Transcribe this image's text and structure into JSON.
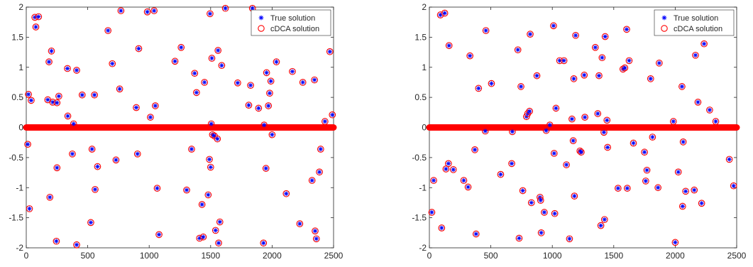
{
  "chart_data": [
    {
      "type": "scatter",
      "title": "",
      "xlabel": "",
      "ylabel": "",
      "xlim": [
        0,
        2500
      ],
      "ylim": [
        -2,
        2
      ],
      "xticks": [
        "0",
        "500",
        "1000",
        "1500",
        "2000",
        "2500"
      ],
      "yticks": [
        "2",
        "1.5",
        "1",
        "0.5",
        "0",
        "-0.5",
        "-1",
        "-1.5",
        "-2"
      ],
      "grid": false,
      "legend_position": "top-right",
      "legend": [
        {
          "label": "True solution",
          "marker": "*",
          "color": "#0000ff"
        },
        {
          "label": "cDCA solution",
          "marker": "o",
          "color": "#ff0000"
        }
      ],
      "zero_line": {
        "from": 0,
        "to": 2500,
        "y": 0
      },
      "points": [
        [
          12,
          -0.28
        ],
        [
          18,
          0.55
        ],
        [
          26,
          -1.35
        ],
        [
          40,
          0.45
        ],
        [
          70,
          1.83
        ],
        [
          78,
          1.67
        ],
        [
          100,
          1.84
        ],
        [
          175,
          0.46
        ],
        [
          185,
          1.09
        ],
        [
          192,
          -1.16
        ],
        [
          205,
          1.27
        ],
        [
          215,
          0.42
        ],
        [
          250,
          0.41
        ],
        [
          250,
          -0.67
        ],
        [
          245,
          -1.89
        ],
        [
          265,
          0.52
        ],
        [
          335,
          0.98
        ],
        [
          338,
          0.19
        ],
        [
          375,
          -0.44
        ],
        [
          385,
          0.06
        ],
        [
          410,
          0.95
        ],
        [
          410,
          -1.95
        ],
        [
          455,
          0.54
        ],
        [
          525,
          -1.58
        ],
        [
          535,
          -0.36
        ],
        [
          555,
          0.54
        ],
        [
          560,
          -1.03
        ],
        [
          580,
          -0.65
        ],
        [
          665,
          1.61
        ],
        [
          700,
          1.06
        ],
        [
          730,
          -0.54
        ],
        [
          760,
          0.64
        ],
        [
          770,
          1.94
        ],
        [
          895,
          0.33
        ],
        [
          905,
          -0.44
        ],
        [
          915,
          1.31
        ],
        [
          985,
          1.92
        ],
        [
          1010,
          0.17
        ],
        [
          1040,
          1.94
        ],
        [
          1050,
          0.36
        ],
        [
          1065,
          -1.01
        ],
        [
          1080,
          -1.78
        ],
        [
          1210,
          1.1
        ],
        [
          1260,
          1.33
        ],
        [
          1305,
          -1.04
        ],
        [
          1345,
          -0.36
        ],
        [
          1370,
          0.9
        ],
        [
          1385,
          0.58
        ],
        [
          1410,
          -1.84
        ],
        [
          1430,
          -1.28
        ],
        [
          1440,
          -1.82
        ],
        [
          1450,
          0.75
        ],
        [
          1480,
          -1.12
        ],
        [
          1490,
          -0.53
        ],
        [
          1495,
          1.89
        ],
        [
          1500,
          -0.66
        ],
        [
          1505,
          0.06
        ],
        [
          1510,
          1.15
        ],
        [
          1515,
          -0.12
        ],
        [
          1530,
          -0.14
        ],
        [
          1540,
          -1.71
        ],
        [
          1555,
          -0.19
        ],
        [
          1560,
          1.28
        ],
        [
          1565,
          -1.92
        ],
        [
          1575,
          -1.57
        ],
        [
          1590,
          1.03
        ],
        [
          1620,
          1.98
        ],
        [
          1720,
          0.74
        ],
        [
          1810,
          0.37
        ],
        [
          1825,
          0.7
        ],
        [
          1840,
          1.98
        ],
        [
          1890,
          0.32
        ],
        [
          1930,
          -1.92
        ],
        [
          1935,
          0.04
        ],
        [
          1950,
          -0.68
        ],
        [
          1955,
          0.91
        ],
        [
          1970,
          0.36
        ],
        [
          1980,
          0.57
        ],
        [
          1990,
          0.77
        ],
        [
          2000,
          -0.12
        ],
        [
          2035,
          1.09
        ],
        [
          2115,
          -1.1
        ],
        [
          2165,
          0.93
        ],
        [
          2225,
          -1.6
        ],
        [
          2250,
          0.75
        ],
        [
          2325,
          -0.88
        ],
        [
          2345,
          0.79
        ],
        [
          2350,
          -1.72
        ],
        [
          2360,
          -1.85
        ],
        [
          2385,
          -0.74
        ],
        [
          2395,
          -0.36
        ],
        [
          2415,
          1.84
        ],
        [
          2430,
          0.1
        ],
        [
          2470,
          1.26
        ],
        [
          2490,
          0.21
        ]
      ]
    },
    {
      "type": "scatter",
      "title": "",
      "xlabel": "",
      "ylabel": "",
      "xlim": [
        0,
        2500
      ],
      "ylim": [
        -2,
        2
      ],
      "xticks": [
        "0",
        "500",
        "1000",
        "1500",
        "2000",
        "2500"
      ],
      "yticks": [
        "2",
        "1.5",
        "1",
        "0.5",
        "0",
        "-0.5",
        "-1",
        "-1.5",
        "-2"
      ],
      "grid": false,
      "legend_position": "top-right",
      "legend": [
        {
          "label": "True solution",
          "marker": "*",
          "color": "#0000ff"
        },
        {
          "label": "cDCA solution",
          "marker": "o",
          "color": "#ff0000"
        }
      ],
      "zero_line": {
        "from": 0,
        "to": 2500,
        "y": 0
      },
      "points": [
        [
          20,
          -1.41
        ],
        [
          35,
          -0.88
        ],
        [
          90,
          1.87
        ],
        [
          100,
          -1.67
        ],
        [
          125,
          1.9
        ],
        [
          135,
          -0.69
        ],
        [
          155,
          -0.6
        ],
        [
          160,
          1.36
        ],
        [
          195,
          -0.7
        ],
        [
          280,
          -0.88
        ],
        [
          315,
          -0.99
        ],
        [
          330,
          1.19
        ],
        [
          370,
          -0.37
        ],
        [
          380,
          -1.77
        ],
        [
          400,
          0.65
        ],
        [
          455,
          -0.06
        ],
        [
          460,
          1.61
        ],
        [
          505,
          0.73
        ],
        [
          580,
          -0.78
        ],
        [
          670,
          -0.6
        ],
        [
          675,
          -0.07
        ],
        [
          720,
          1.29
        ],
        [
          730,
          -1.84
        ],
        [
          745,
          0.68
        ],
        [
          760,
          -1.05
        ],
        [
          790,
          0.18
        ],
        [
          800,
          0.23
        ],
        [
          815,
          0.27
        ],
        [
          820,
          1.55
        ],
        [
          830,
          -1.25
        ],
        [
          875,
          0.86
        ],
        [
          900,
          -1.16
        ],
        [
          905,
          -1.21
        ],
        [
          910,
          -1.75
        ],
        [
          935,
          -1.41
        ],
        [
          950,
          -0.05
        ],
        [
          980,
          0.04
        ],
        [
          1010,
          1.69
        ],
        [
          1015,
          -0.43
        ],
        [
          1020,
          -1.43
        ],
        [
          1030,
          0.32
        ],
        [
          1060,
          1.11
        ],
        [
          1095,
          1.11
        ],
        [
          1115,
          -0.62
        ],
        [
          1140,
          -1.85
        ],
        [
          1160,
          0.14
        ],
        [
          1170,
          -0.22
        ],
        [
          1175,
          0.81
        ],
        [
          1180,
          -1.14
        ],
        [
          1190,
          1.53
        ],
        [
          1225,
          -0.39
        ],
        [
          1235,
          -0.41
        ],
        [
          1260,
          0.87
        ],
        [
          1265,
          0.17
        ],
        [
          1350,
          1.33
        ],
        [
          1370,
          0.23
        ],
        [
          1380,
          0.86
        ],
        [
          1395,
          -1.63
        ],
        [
          1405,
          1.16
        ],
        [
          1420,
          -0.08
        ],
        [
          1425,
          -1.53
        ],
        [
          1430,
          1.51
        ],
        [
          1445,
          0.12
        ],
        [
          1450,
          -0.33
        ],
        [
          1535,
          -1.01
        ],
        [
          1575,
          0.97
        ],
        [
          1590,
          0.99
        ],
        [
          1605,
          1.63
        ],
        [
          1610,
          -1.01
        ],
        [
          1625,
          1.11
        ],
        [
          1660,
          -0.26
        ],
        [
          1750,
          -0.41
        ],
        [
          1760,
          -0.89
        ],
        [
          1770,
          -0.71
        ],
        [
          1800,
          0.81
        ],
        [
          1815,
          -0.16
        ],
        [
          1860,
          -1.0
        ],
        [
          1870,
          1.07
        ],
        [
          1985,
          0.1
        ],
        [
          2000,
          -1.91
        ],
        [
          2025,
          -0.74
        ],
        [
          2055,
          0.68
        ],
        [
          2060,
          -1.31
        ],
        [
          2065,
          -0.24
        ],
        [
          2085,
          -1.06
        ],
        [
          2155,
          -1.04
        ],
        [
          2165,
          1.2
        ],
        [
          2185,
          0.42
        ],
        [
          2215,
          -1.26
        ],
        [
          2235,
          1.39
        ],
        [
          2280,
          0.29
        ],
        [
          2330,
          0.1
        ],
        [
          2440,
          -0.53
        ],
        [
          2475,
          -0.97
        ]
      ]
    }
  ]
}
